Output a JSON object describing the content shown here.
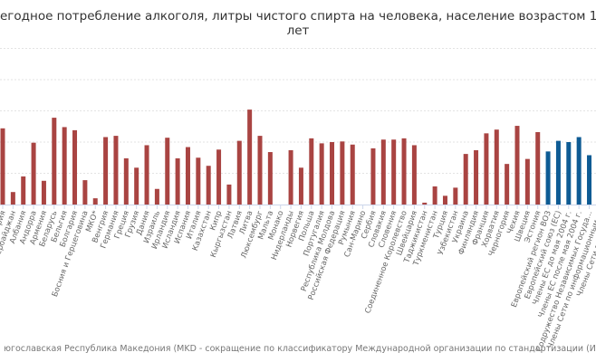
{
  "chart_data": {
    "type": "bar",
    "title_lines": [
      "егодное потребление алкоголя, литры чистого спирта на человека, население возрастом 1",
      "лет"
    ],
    "footnote": "югославская Республика Македония (MKD - сокращение по классификатору Международной организации по стандартизации (ИСО))",
    "ylim": [
      0,
      25
    ],
    "grid": true,
    "colors": {
      "country": "#a94442",
      "aggregate": "#0e5b94",
      "grid": "#e3e3e3",
      "tick": "#ccd6eb"
    },
    "categories": [
      "Австрия",
      "Азербайджан",
      "Албания",
      "Андорра",
      "Армения",
      "Беларусь",
      "Бельгия",
      "Болгария",
      "Босния и Герцеговина",
      "МКО*",
      "Венгрия",
      "Германия",
      "Греция",
      "Грузия",
      "Дания",
      "Израиль",
      "Ирландия",
      "Исландия",
      "Испания",
      "Италия",
      "Казахстан",
      "Кипр",
      "Кыргызстан",
      "Латвия",
      "Литва",
      "Люксембург",
      "Мальта",
      "Монако",
      "Нидерланды",
      "Норвегия",
      "Польша",
      "Португалия",
      "Республика Молдова",
      "Российская Федерация",
      "Румыния",
      "Сан-Марино",
      "Сербия",
      "Словакия",
      "Словения",
      "Соединенное Королевство",
      "Швейцария",
      "Таджикистан",
      "Туркменистан",
      "Турция",
      "Узбекистан",
      "Украина",
      "Финляндия",
      "Франция",
      "Хорватия",
      "Черногория",
      "Чехия",
      "Швеция",
      "Эстония",
      "Европейский регион ВОЗ",
      "Европейский союз (ЕС)",
      "Члены ЕС до мая 2004 г.",
      "Члены ЕС после мая 2004 г.",
      "Содружество Независимых Госуда...",
      "Члены Сети по информационным ...",
      "Члены Сети здравоо..."
    ],
    "values": [
      12.2,
      2.0,
      4.5,
      9.9,
      3.8,
      13.9,
      12.4,
      11.9,
      3.9,
      1.0,
      10.8,
      11.0,
      7.4,
      5.9,
      9.5,
      2.5,
      10.7,
      7.4,
      9.2,
      7.5,
      6.2,
      8.8,
      3.2,
      10.2,
      15.2,
      11.0,
      8.4,
      null,
      8.7,
      5.9,
      10.6,
      9.8,
      10.0,
      10.1,
      9.6,
      null,
      9.0,
      10.4,
      10.4,
      10.6,
      9.5,
      0.3,
      2.9,
      1.4,
      2.7,
      8.1,
      8.7,
      11.4,
      12.0,
      6.5,
      12.6,
      7.3,
      11.6,
      8.5,
      10.2,
      10.0,
      10.8,
      7.9,
      null,
      null
    ],
    "group": [
      "country",
      "country",
      "country",
      "country",
      "country",
      "country",
      "country",
      "country",
      "country",
      "country",
      "country",
      "country",
      "country",
      "country",
      "country",
      "country",
      "country",
      "country",
      "country",
      "country",
      "country",
      "country",
      "country",
      "country",
      "country",
      "country",
      "country",
      "country",
      "country",
      "country",
      "country",
      "country",
      "country",
      "country",
      "country",
      "country",
      "country",
      "country",
      "country",
      "country",
      "country",
      "country",
      "country",
      "country",
      "country",
      "country",
      "country",
      "country",
      "country",
      "country",
      "country",
      "country",
      "country",
      "aggregate",
      "aggregate",
      "aggregate",
      "aggregate",
      "aggregate",
      "aggregate",
      "aggregate"
    ]
  }
}
